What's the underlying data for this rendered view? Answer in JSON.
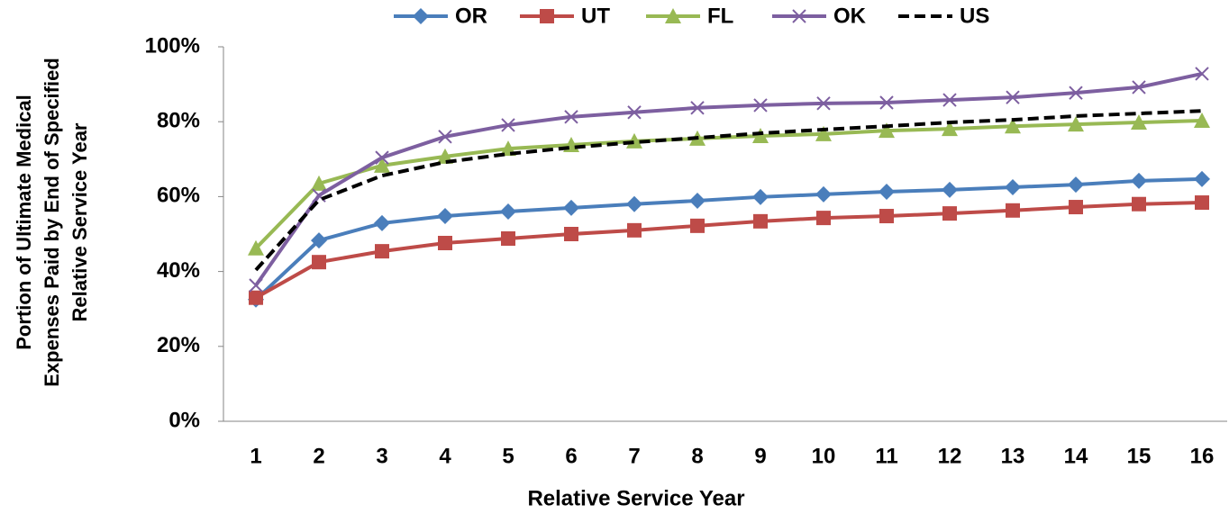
{
  "chart_data": {
    "type": "line",
    "x_label": "Relative Service Year",
    "y_label": [
      "Portion of Ultimate Medical",
      "Expenses Paid by End of Specified",
      "Relative Service Year"
    ],
    "categories": [
      1,
      2,
      3,
      4,
      5,
      6,
      7,
      8,
      9,
      10,
      11,
      12,
      13,
      14,
      15,
      16
    ],
    "ylim": [
      0,
      100
    ],
    "yticks": [
      {
        "value": 0,
        "label": "0%"
      },
      {
        "value": 20,
        "label": "20%"
      },
      {
        "value": 40,
        "label": "40%"
      },
      {
        "value": 60,
        "label": "60%"
      },
      {
        "value": 80,
        "label": "80%"
      },
      {
        "value": 100,
        "label": "100%"
      }
    ],
    "legend": "top",
    "series": [
      {
        "name": "OR",
        "color": "#4a7ebb",
        "marker": "diamond",
        "values": [
          32.5,
          48.3,
          52.9,
          54.8,
          56,
          57,
          58,
          58.9,
          59.9,
          60.6,
          61.3,
          61.8,
          62.5,
          63.2,
          64.2,
          64.7
        ]
      },
      {
        "name": "UT",
        "color": "#be4b48",
        "marker": "square",
        "values": [
          33,
          42.5,
          45.4,
          47.6,
          48.8,
          50,
          51,
          52.2,
          53.4,
          54.3,
          54.8,
          55.5,
          56.3,
          57.2,
          58,
          58.4
        ]
      },
      {
        "name": "FL",
        "color": "#98b954",
        "marker": "triangle",
        "values": [
          46.2,
          63.5,
          68.3,
          70.7,
          72.8,
          73.8,
          74.8,
          75.5,
          76.2,
          76.7,
          77.6,
          78.1,
          78.8,
          79.3,
          79.8,
          80.3
        ]
      },
      {
        "name": "OK",
        "color": "#7d5fa0",
        "marker": "x",
        "values": [
          36.3,
          60.3,
          70.4,
          76,
          79.1,
          81.3,
          82.5,
          83.7,
          84.4,
          84.9,
          85.1,
          85.8,
          86.5,
          87.7,
          89.2,
          92.8
        ]
      },
      {
        "name": "US",
        "color": "#000000",
        "marker": "none",
        "dash": true,
        "values": [
          40.4,
          59.1,
          65.6,
          69.2,
          71.4,
          73.1,
          74.5,
          75.7,
          76.9,
          77.9,
          78.8,
          79.8,
          80.5,
          81.5,
          82.2,
          82.9
        ]
      }
    ]
  }
}
